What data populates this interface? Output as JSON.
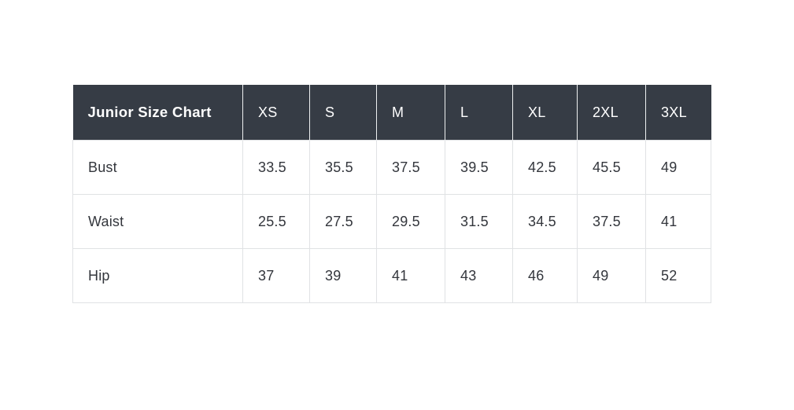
{
  "theme": {
    "header_bg": "#363c45",
    "header_text": "#ffffff",
    "header_divider": "#eef0f1",
    "body_text": "#33363c",
    "border": "#e0e2e4",
    "page_bg": "#ffffff"
  },
  "table": {
    "corner_label": "Junior Size Chart",
    "size_headers": [
      "XS",
      "S",
      "M",
      "L",
      "XL",
      "2XL",
      "3XL"
    ],
    "rows": [
      {
        "label": "Bust",
        "values": [
          "33.5",
          "35.5",
          "37.5",
          "39.5",
          "42.5",
          "45.5",
          "49"
        ]
      },
      {
        "label": "Waist",
        "values": [
          "25.5",
          "27.5",
          "29.5",
          "31.5",
          "34.5",
          "37.5",
          "41"
        ]
      },
      {
        "label": "Hip",
        "values": [
          "37",
          "39",
          "41",
          "43",
          "46",
          "49",
          "52"
        ]
      }
    ]
  },
  "chart_data": {
    "type": "table",
    "title": "Junior Size Chart",
    "columns": [
      "Junior Size Chart",
      "XS",
      "S",
      "M",
      "L",
      "XL",
      "2XL",
      "3XL"
    ],
    "categories": [
      "XS",
      "S",
      "M",
      "L",
      "XL",
      "2XL",
      "3XL"
    ],
    "series": [
      {
        "name": "Bust",
        "values": [
          33.5,
          35.5,
          37.5,
          39.5,
          42.5,
          45.5,
          49
        ]
      },
      {
        "name": "Waist",
        "values": [
          25.5,
          27.5,
          29.5,
          31.5,
          34.5,
          37.5,
          41
        ]
      },
      {
        "name": "Hip",
        "values": [
          37,
          39,
          41,
          43,
          46,
          49,
          52
        ]
      }
    ]
  }
}
